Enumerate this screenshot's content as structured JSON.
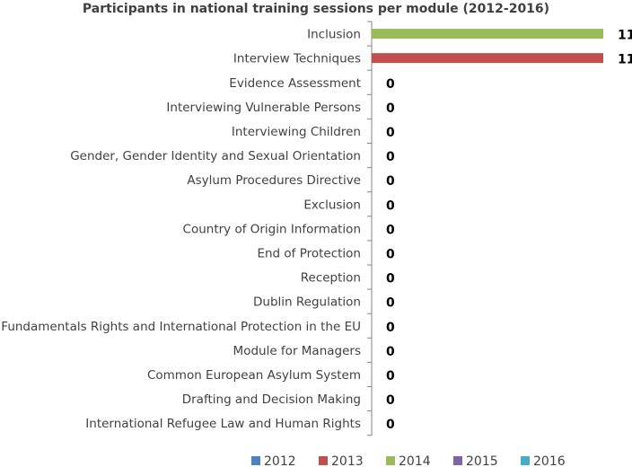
{
  "chart_data": {
    "type": "bar",
    "orientation": "horizontal",
    "stacked": true,
    "title": "Participants in national training sessions per module (2012-2016)",
    "categories": [
      "Inclusion",
      "Interview Techniques",
      "Evidence Assessment",
      "Interviewing Vulnerable Persons",
      "Interviewing Children",
      "Gender, Gender Identity and Sexual Orientation",
      "Asylum Procedures Directive ",
      "Exclusion",
      "Country of Origin Information",
      "End of Protection ",
      "Reception",
      "Dublin Regulation",
      "Fundamentals Rights and International Protection in the EU",
      "Module for Managers",
      "Common European Asylum System",
      "Drafting and Decision Making",
      "International Refugee Law and Human Rights"
    ],
    "series": [
      {
        "name": "2012",
        "color": "#4f81bd",
        "values": [
          0,
          0,
          0,
          0,
          0,
          0,
          0,
          0,
          0,
          0,
          0,
          0,
          0,
          0,
          0,
          0,
          0
        ]
      },
      {
        "name": "2013",
        "color": "#c0504d",
        "values": [
          0,
          11,
          0,
          0,
          0,
          0,
          0,
          0,
          0,
          0,
          0,
          0,
          0,
          0,
          0,
          0,
          0
        ]
      },
      {
        "name": "2014",
        "color": "#9bbb59",
        "values": [
          11,
          0,
          0,
          0,
          0,
          0,
          0,
          0,
          0,
          0,
          0,
          0,
          0,
          0,
          0,
          0,
          0
        ]
      },
      {
        "name": "2015",
        "color": "#8064a2",
        "values": [
          0,
          0,
          0,
          0,
          0,
          0,
          0,
          0,
          0,
          0,
          0,
          0,
          0,
          0,
          0,
          0,
          0
        ]
      },
      {
        "name": "2016",
        "color": "#4bacc6",
        "values": [
          0,
          0,
          0,
          0,
          0,
          0,
          0,
          0,
          0,
          0,
          0,
          0,
          0,
          0,
          0,
          0,
          0
        ]
      }
    ],
    "totals": [
      "11",
      "11",
      "0",
      "0",
      "0",
      "0",
      "0",
      "0",
      "0",
      "0",
      "0",
      "0",
      "0",
      "0",
      "0",
      "0",
      "0"
    ],
    "xlim": [
      0,
      11
    ],
    "grid": false,
    "legend_position": "bottom"
  }
}
